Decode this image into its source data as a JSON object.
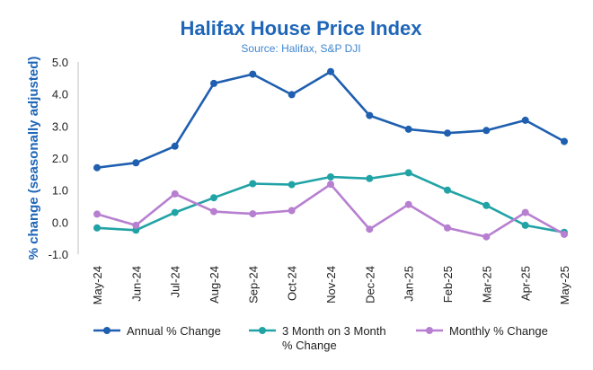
{
  "chart_data": {
    "type": "line",
    "title": "Halifax House Price Index",
    "subtitle": "Source: Halifax, S&P DJI",
    "xlabel": "",
    "ylabel": "% change (seasonally adjusted)",
    "ylim": [
      -1.0,
      5.0
    ],
    "yticks": [
      "5.0",
      "4.0",
      "3.0",
      "2.0",
      "1.0",
      "0.0",
      "-1.0"
    ],
    "ytick_values": [
      5,
      4,
      3,
      2,
      1,
      0,
      -1
    ],
    "grid": false,
    "legend_position": "bottom",
    "categories": [
      "May-24",
      "Jun-24",
      "Jul-24",
      "Aug-24",
      "Sep-24",
      "Oct-24",
      "Nov-24",
      "Dec-24",
      "Jan-25",
      "Feb-25",
      "Mar-25",
      "Apr-25",
      "May-25"
    ],
    "series": [
      {
        "name": "Annual % Change",
        "legend_lines": [
          "Annual % Change"
        ],
        "color": "#1f5fb0",
        "values": [
          1.7,
          1.85,
          2.37,
          4.33,
          4.62,
          3.98,
          4.7,
          3.33,
          2.9,
          2.78,
          2.86,
          3.18,
          2.52
        ]
      },
      {
        "name": "3 Month on 3 Month % Change",
        "legend_lines": [
          "3 Month on 3 Month",
          "% Change"
        ],
        "color": "#21a3a6",
        "values": [
          -0.18,
          -0.25,
          0.3,
          0.76,
          1.2,
          1.17,
          1.41,
          1.36,
          1.54,
          1.0,
          0.52,
          -0.1,
          -0.32
        ]
      },
      {
        "name": "Monthly % Change",
        "legend_lines": [
          "Monthly % Change"
        ],
        "color": "#b77fd0",
        "values": [
          0.25,
          -0.1,
          0.88,
          0.33,
          0.26,
          0.36,
          1.18,
          -0.22,
          0.55,
          -0.18,
          -0.46,
          0.3,
          -0.38
        ]
      }
    ]
  }
}
